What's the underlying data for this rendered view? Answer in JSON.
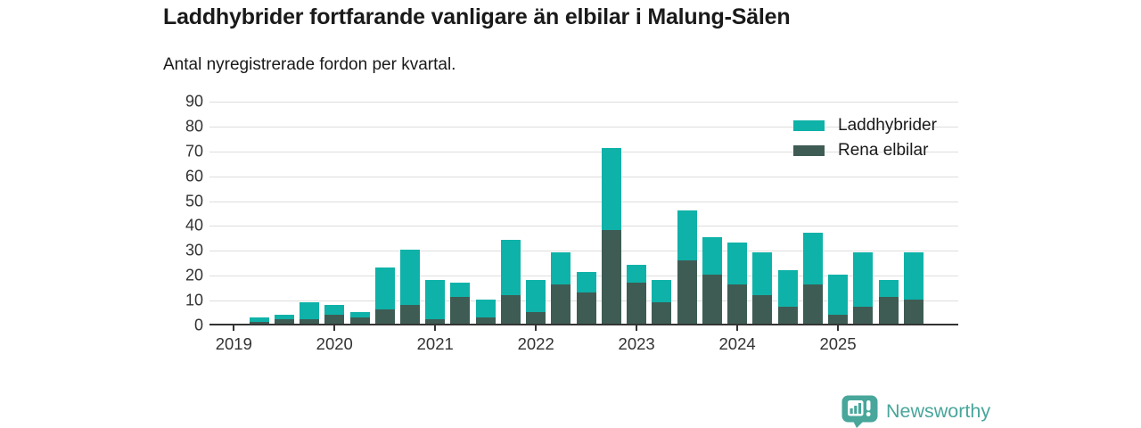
{
  "header": {
    "title": "Laddhybrider fortfarande vanligare än elbilar i Malung-Sälen",
    "subtitle": "Antal nyregistrerade fordon per kvartal."
  },
  "chart_data": {
    "type": "bar",
    "stacked": true,
    "title": "Laddhybrider fortfarande vanligare än elbilar i Malung-Sälen",
    "subtitle": "Antal nyregistrerade fordon per kvartal.",
    "categories": [
      "2019 Q1",
      "2019 Q2",
      "2019 Q3",
      "2019 Q4",
      "2020 Q1",
      "2020 Q2",
      "2020 Q3",
      "2020 Q4",
      "2021 Q1",
      "2021 Q2",
      "2021 Q3",
      "2021 Q4",
      "2022 Q1",
      "2022 Q2",
      "2022 Q3",
      "2022 Q4",
      "2023 Q1",
      "2023 Q2",
      "2023 Q3",
      "2023 Q4",
      "2024 Q1",
      "2024 Q2",
      "2024 Q3",
      "2024 Q4",
      "2025 Q1",
      "2025 Q2",
      "2025 Q3",
      "2025 Q4"
    ],
    "x_tick_labels": [
      "2019",
      "2020",
      "2021",
      "2022",
      "2023",
      "2024",
      "2025"
    ],
    "series": [
      {
        "name": "Laddhybrider",
        "color": "#0fb2a8",
        "values": [
          0,
          2,
          2,
          7,
          4,
          2,
          17,
          22,
          16,
          6,
          7,
          22,
          13,
          13,
          8,
          33,
          7,
          9,
          20,
          15,
          17,
          17,
          15,
          21,
          16,
          22,
          7,
          19
        ]
      },
      {
        "name": "Rena elbilar",
        "color": "#3e5c54",
        "values": [
          0,
          1,
          2,
          2,
          4,
          3,
          6,
          8,
          2,
          11,
          3,
          12,
          5,
          16,
          13,
          38,
          17,
          9,
          26,
          20,
          16,
          12,
          7,
          16,
          4,
          7,
          11,
          10
        ]
      }
    ],
    "totals": [
      0,
      3,
      4,
      9,
      8,
      5,
      23,
      30,
      18,
      17,
      10,
      34,
      18,
      29,
      21,
      71,
      24,
      18,
      46,
      35,
      33,
      29,
      22,
      37,
      20,
      29,
      18,
      29
    ],
    "xlabel": "",
    "ylabel": "",
    "ylim": [
      0,
      90
    ],
    "yticks": [
      0,
      10,
      20,
      30,
      40,
      50,
      60,
      70,
      80,
      90
    ],
    "grid": true,
    "legend_position": "top-right"
  },
  "footer": {
    "logo_text": "Newsworthy"
  },
  "colors": {
    "laddhybrider": "#0fb2a8",
    "rena_elbilar": "#3e5c54",
    "axis": "#333333",
    "gridline": "#dedede",
    "text": "#1a1a1a",
    "brand": "#48a69b"
  }
}
